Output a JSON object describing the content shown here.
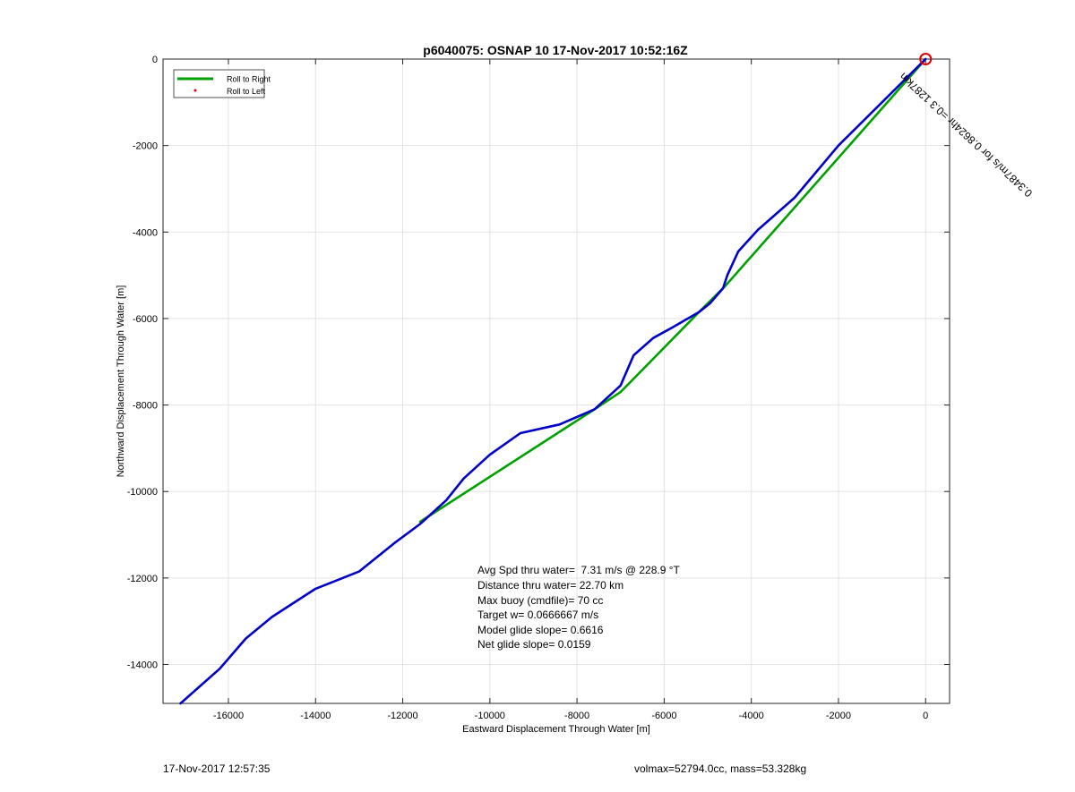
{
  "footer": {
    "timestamp": "17-Nov-2017 12:57:35",
    "vol_mass": "volmax=52794.0cc, mass=53.328kg"
  },
  "chart_data": {
    "type": "line",
    "title": "p6040075: OSNAP 10 17-Nov-2017 10:52:16Z",
    "xlabel": "Eastward Displacement Through Water [m]",
    "ylabel": "Northward Displacement Through Water [m]",
    "xlim": [
      -17500,
      550
    ],
    "ylim": [
      -14900,
      0
    ],
    "xticks": [
      -16000,
      -14000,
      -12000,
      -10000,
      -8000,
      -6000,
      -4000,
      -2000,
      0
    ],
    "yticks": [
      0,
      -2000,
      -4000,
      -6000,
      -8000,
      -10000,
      -12000,
      -14000
    ],
    "grid": true,
    "legend": {
      "placement": "top-left",
      "entries": [
        "Roll to Right",
        "Roll to Left"
      ]
    },
    "series": [
      {
        "name": "Roll to Right",
        "color": "#00a000",
        "points": [
          [
            0,
            0
          ],
          [
            -4600,
            -5250
          ],
          [
            -5200,
            -5850
          ],
          [
            -7000,
            -7700
          ],
          [
            -7600,
            -8100
          ],
          [
            -11600,
            -10700
          ]
        ]
      },
      {
        "name": "",
        "color": "#0000c8",
        "points": [
          [
            0,
            0
          ],
          [
            -1000,
            -1000
          ],
          [
            -2000,
            -2000
          ],
          [
            -3000,
            -3200
          ],
          [
            -3850,
            -3950
          ],
          [
            -4300,
            -4450
          ],
          [
            -4550,
            -5000
          ],
          [
            -4650,
            -5300
          ],
          [
            -4950,
            -5650
          ],
          [
            -5200,
            -5850
          ],
          [
            -5800,
            -6200
          ],
          [
            -6250,
            -6450
          ],
          [
            -6700,
            -6850
          ],
          [
            -7000,
            -7550
          ],
          [
            -7600,
            -8100
          ],
          [
            -8400,
            -8450
          ],
          [
            -9300,
            -8650
          ],
          [
            -10000,
            -9150
          ],
          [
            -10600,
            -9700
          ],
          [
            -11000,
            -10200
          ],
          [
            -11600,
            -10750
          ],
          [
            -12200,
            -11200
          ],
          [
            -13000,
            -11850
          ],
          [
            -14000,
            -12250
          ],
          [
            -15000,
            -12900
          ],
          [
            -15600,
            -13400
          ],
          [
            -16200,
            -14100
          ],
          [
            -17100,
            -14900
          ]
        ]
      }
    ],
    "marker": {
      "x": 0,
      "y": 0,
      "color": "#e00000"
    },
    "annotation_rotated": "0.3487m/s for 0.8624hr =0.3 1287km",
    "stats": [
      "Avg Spd thru water=  7.31 m/s @ 228.9 °T",
      "Distance thru water= 22.70 km",
      "Max buoy (cmdfile)= 70 cc",
      "Target w= 0.0666667 m/s",
      "Model glide slope= 0.6616",
      "Net glide slope= 0.0159"
    ]
  }
}
